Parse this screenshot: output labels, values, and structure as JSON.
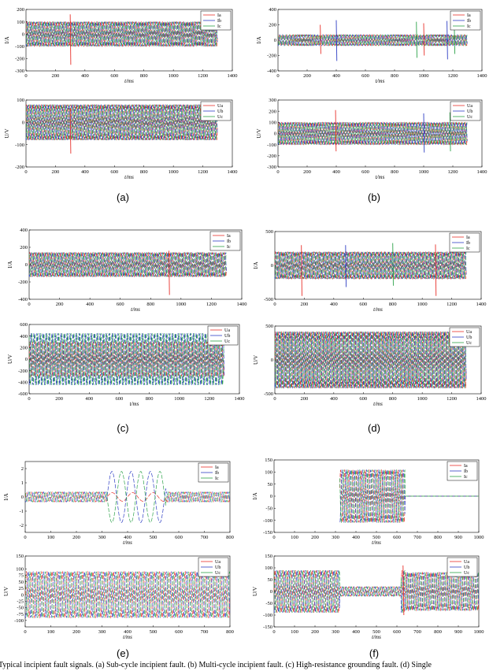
{
  "colors": {
    "a": "#e8312b",
    "b": "#2f3fc4",
    "c": "#2ea34a",
    "axis": "#000000"
  },
  "caption": "Typical incipient fault signals. (a) Sub-cycle incipient fault. (b) Multi-cycle incipient fault. (c) High-resistance grounding fault. (d) Single",
  "panel_labels": [
    "(a)",
    "(b)",
    "(c)",
    "(d)",
    "(e)",
    "(f)"
  ],
  "chart_data": [
    {
      "id": "a-current",
      "type": "line",
      "xlabel": "t/ms",
      "ylabel": "I/A",
      "xlim": [
        0,
        1400
      ],
      "ylim": [
        -300,
        200
      ],
      "xticks": [
        "0",
        "200",
        "400",
        "600",
        "800",
        "1000",
        "1200",
        "1400"
      ],
      "yticks": [
        "-300",
        "-200",
        "-100",
        "0",
        "100",
        "200"
      ],
      "legend": [
        "Ia",
        "Ib",
        "Ic"
      ],
      "legend_position": "top-right",
      "series": [
        {
          "name": "Ia",
          "amplitude": 100
        },
        {
          "name": "Ib",
          "amplitude": 100
        },
        {
          "name": "Ic",
          "amplitude": 100
        }
      ],
      "t_end": 1300,
      "spikes": [
        [
          300,
          160,
          -250
        ]
      ]
    },
    {
      "id": "a-voltage",
      "type": "line",
      "xlabel": "t/ms",
      "ylabel": "U/V",
      "xlim": [
        0,
        1400
      ],
      "ylim": [
        -200,
        100
      ],
      "xticks": [
        "0",
        "200",
        "400",
        "600",
        "800",
        "1000",
        "1200",
        "1400"
      ],
      "yticks": [
        "-200",
        "-100",
        "0",
        "100"
      ],
      "legend": [
        "Ua",
        "Ub",
        "Uc"
      ],
      "legend_position": "top-right",
      "series": [
        {
          "name": "Ua",
          "amplitude": 80
        },
        {
          "name": "Ub",
          "amplitude": 80
        },
        {
          "name": "Uc",
          "amplitude": 80
        }
      ],
      "t_end": 1300,
      "spikes": [
        [
          300,
          60,
          -140
        ]
      ]
    },
    {
      "id": "b-current",
      "type": "line",
      "xlabel": "t/ms",
      "ylabel": "I/A",
      "xlim": [
        0,
        1400
      ],
      "ylim": [
        -400,
        400
      ],
      "xticks": [
        "0",
        "200",
        "400",
        "600",
        "800",
        "1000",
        "1200",
        "1400"
      ],
      "yticks": [
        "-400",
        "-200",
        "0",
        "200",
        "400"
      ],
      "legend": [
        "Ia",
        "Ib",
        "Ic"
      ],
      "legend_position": "top-right",
      "series": [
        {
          "name": "Ia",
          "amplitude": 70
        },
        {
          "name": "Ib",
          "amplitude": 70
        },
        {
          "name": "Ic",
          "amplitude": 70
        }
      ],
      "t_end": 1300,
      "spikes": [
        [
          290,
          200,
          -180
        ],
        [
          400,
          260,
          -270
        ],
        [
          950,
          240,
          -230
        ],
        [
          1000,
          220,
          -200
        ],
        [
          1160,
          250,
          -250
        ],
        [
          1210,
          200,
          -180
        ]
      ]
    },
    {
      "id": "b-voltage",
      "type": "line",
      "xlabel": "t/ms",
      "ylabel": "U/V",
      "xlim": [
        0,
        1400
      ],
      "ylim": [
        -300,
        300
      ],
      "xticks": [
        "0",
        "200",
        "400",
        "600",
        "800",
        "1000",
        "1200",
        "1400"
      ],
      "yticks": [
        "-300",
        "-200",
        "-100",
        "0",
        "100",
        "200",
        "300"
      ],
      "legend": [
        "Ua",
        "Ub",
        "Uc"
      ],
      "legend_position": "top-right",
      "series": [
        {
          "name": "Ua",
          "amplitude": 100
        },
        {
          "name": "Ub",
          "amplitude": 100
        },
        {
          "name": "Uc",
          "amplitude": 100
        }
      ],
      "t_end": 1300,
      "spikes": [
        [
          395,
          210,
          -160
        ],
        [
          1000,
          180,
          -170
        ],
        [
          1180,
          190,
          -160
        ]
      ]
    },
    {
      "id": "c-current",
      "type": "line",
      "xlabel": "t/ms",
      "ylabel": "I/A",
      "xlim": [
        0,
        1400
      ],
      "ylim": [
        -400,
        400
      ],
      "xticks": [
        "0",
        "200",
        "400",
        "600",
        "800",
        "1000",
        "1200",
        "1400"
      ],
      "yticks": [
        "-400",
        "-200",
        "0",
        "200",
        "400"
      ],
      "legend": [
        "Ia",
        "Ib",
        "Ic"
      ],
      "legend_position": "top-right",
      "series": [
        {
          "name": "Ia",
          "amplitude": 140
        },
        {
          "name": "Ib",
          "amplitude": 140
        },
        {
          "name": "Ic",
          "amplitude": 140
        }
      ],
      "t_end": 1300,
      "spikes": [
        [
          920,
          160,
          -350
        ]
      ]
    },
    {
      "id": "c-voltage",
      "type": "line",
      "xlabel": "t/ms",
      "ylabel": "U/V",
      "xlim": [
        0,
        1400
      ],
      "ylim": [
        -600,
        600
      ],
      "xticks": [
        "0",
        "200",
        "400",
        "600",
        "800",
        "1000",
        "1200",
        "1400"
      ],
      "yticks": [
        "-600",
        "-400",
        "-200",
        "0",
        "200",
        "400",
        "600"
      ],
      "legend": [
        "Ua",
        "Ub",
        "Uc"
      ],
      "legend_position": "top-right",
      "series": [
        {
          "name": "Ua",
          "amplitude": 300
        },
        {
          "name": "Ub",
          "amplitude": 450
        },
        {
          "name": "Uc",
          "amplitude": 450
        }
      ],
      "t_end": 1300,
      "spikes": []
    },
    {
      "id": "d-current",
      "type": "line",
      "xlabel": "t/ms",
      "ylabel": "I/A",
      "xlim": [
        0,
        1400
      ],
      "ylim": [
        -500,
        500
      ],
      "xticks": [
        "0",
        "200",
        "400",
        "600",
        "800",
        "1000",
        "1200",
        "1400"
      ],
      "yticks": [
        "-500",
        "0",
        "500"
      ],
      "legend": [
        "Ia",
        "Ib",
        "Ic"
      ],
      "legend_position": "top-right",
      "series": [
        {
          "name": "Ia",
          "amplitude": 200
        },
        {
          "name": "Ib",
          "amplitude": 200
        },
        {
          "name": "Ic",
          "amplitude": 200
        }
      ],
      "t_end": 1300,
      "spikes": [
        [
          180,
          300,
          -450
        ],
        [
          480,
          300,
          -320
        ],
        [
          800,
          330,
          -300
        ],
        [
          1090,
          310,
          -450
        ]
      ]
    },
    {
      "id": "d-voltage",
      "type": "line",
      "xlabel": "t/ms",
      "ylabel": "U/V",
      "xlim": [
        0,
        1400
      ],
      "ylim": [
        -500,
        500
      ],
      "xticks": [
        "0",
        "200",
        "400",
        "600",
        "800",
        "1000",
        "1200",
        "1400"
      ],
      "yticks": [
        "-500",
        "0",
        "500"
      ],
      "legend": [
        "Ua",
        "Ub",
        "Uc"
      ],
      "legend_position": "top-right",
      "series": [
        {
          "name": "Ua",
          "amplitude": 420
        },
        {
          "name": "Ub",
          "amplitude": 420
        },
        {
          "name": "Uc",
          "amplitude": 420
        }
      ],
      "t_end": 1300,
      "spikes": []
    },
    {
      "id": "e-current",
      "type": "line",
      "xlabel": "t/ms",
      "ylabel": "I/A",
      "xlim": [
        0,
        800
      ],
      "ylim": [
        -2.5,
        2.5
      ],
      "xticks": [
        "0",
        "100",
        "200",
        "300",
        "400",
        "500",
        "600",
        "700",
        "800"
      ],
      "yticks": [
        "-2",
        "-1",
        "0",
        "1",
        "2"
      ],
      "legend": [
        "Ia",
        "Ib",
        "Ic"
      ],
      "legend_position": "top-right",
      "series": [
        {
          "name": "Ia",
          "amplitude": 0.35
        },
        {
          "name": "Ib",
          "amplitude": 0.35
        },
        {
          "name": "Ic",
          "amplitude": 0.35
        }
      ],
      "t_end": 800,
      "fault": {
        "start": 320,
        "end": 550,
        "amplitude": 1.8
      },
      "spikes": []
    },
    {
      "id": "e-voltage",
      "type": "line",
      "xlabel": "t/ms",
      "ylabel": "U/V",
      "xlim": [
        0,
        800
      ],
      "ylim": [
        -125,
        150
      ],
      "xticks": [
        "0",
        "100",
        "200",
        "300",
        "400",
        "500",
        "600",
        "700",
        "800"
      ],
      "yticks": [
        "-100",
        "-75",
        "-50",
        "-25",
        "0",
        "25",
        "50",
        "75",
        "100",
        "150"
      ],
      "legend": [
        "Ua",
        "Ub",
        "Uc"
      ],
      "legend_position": "top-right",
      "series": [
        {
          "name": "Ua",
          "amplitude": 90
        },
        {
          "name": "Ub",
          "amplitude": 90
        },
        {
          "name": "Uc",
          "amplitude": 90
        }
      ],
      "t_end": 800,
      "spikes": []
    },
    {
      "id": "f-current",
      "type": "line",
      "xlabel": "t/ms",
      "ylabel": "I/A",
      "xlim": [
        0,
        1000
      ],
      "ylim": [
        -150,
        150
      ],
      "xticks": [
        "0",
        "100",
        "200",
        "300",
        "400",
        "500",
        "600",
        "700",
        "800",
        "900",
        "1000"
      ],
      "yticks": [
        "-150",
        "-100",
        "-50",
        "0",
        "50",
        "100",
        "150"
      ],
      "legend": [
        "Ia",
        "Ib",
        "Ic"
      ],
      "legend_position": "top-right",
      "series": [
        {
          "name": "Ia",
          "amplitude": 110
        },
        {
          "name": "Ib",
          "amplitude": 110
        },
        {
          "name": "Ic",
          "amplitude": 110
        }
      ],
      "t_start": 320,
      "t_cut": 640,
      "t_end": 1000,
      "spikes": []
    },
    {
      "id": "f-voltage",
      "type": "line",
      "xlabel": "t/ms",
      "ylabel": "U/V",
      "xlim": [
        0,
        1000
      ],
      "ylim": [
        -150,
        150
      ],
      "xticks": [
        "0",
        "100",
        "200",
        "300",
        "400",
        "500",
        "600",
        "700",
        "800",
        "900",
        "1000"
      ],
      "yticks": [
        "-150",
        "-100",
        "-50",
        "0",
        "50",
        "100",
        "150"
      ],
      "legend": [
        "Ua",
        "Ub",
        "Uc"
      ],
      "legend_position": "top-right",
      "series": [
        {
          "name": "Ua",
          "amplitude": 90
        },
        {
          "name": "Ub",
          "amplitude": 90
        },
        {
          "name": "Uc",
          "amplitude": 90
        }
      ],
      "t_end": 1000,
      "dip": {
        "start": 320,
        "end": 620,
        "amplitude": 20
      },
      "spikes": [
        [
          630,
          110,
          -100
        ]
      ]
    }
  ]
}
